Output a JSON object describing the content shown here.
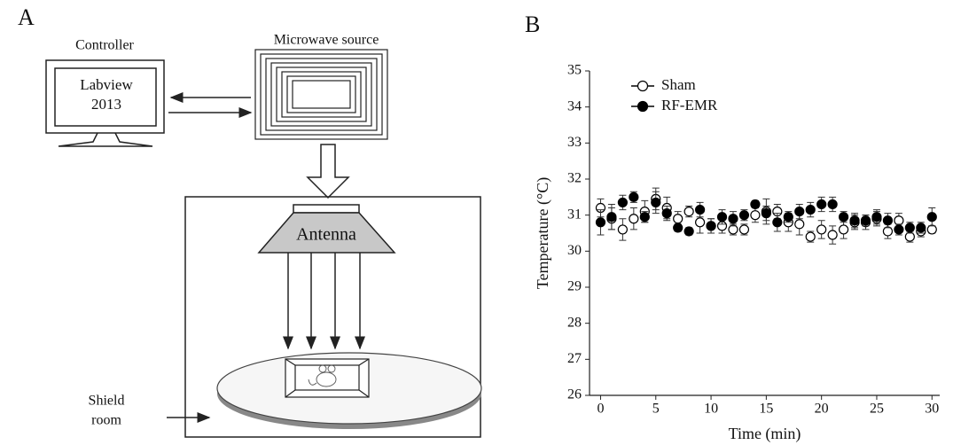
{
  "panel_a": {
    "label": "A",
    "controller": "Controller",
    "software": [
      "Labview",
      "2013"
    ],
    "source": "Microwave source",
    "antenna": "Antenna",
    "room": [
      "Shield",
      "room"
    ]
  },
  "chart_data": {
    "type": "scatter",
    "panel_label": "B",
    "x_label": "Time (min)",
    "y_label": "Temperature (°C)",
    "x": [
      0,
      1,
      2,
      3,
      4,
      5,
      6,
      7,
      8,
      9,
      10,
      11,
      12,
      13,
      14,
      15,
      16,
      17,
      18,
      19,
      20,
      21,
      22,
      23,
      24,
      25,
      26,
      27,
      28,
      29,
      30
    ],
    "series": [
      {
        "name": "Sham",
        "color": "#ffffff",
        "values": [
          31.2,
          30.9,
          30.6,
          30.9,
          31.1,
          31.45,
          31.2,
          30.9,
          31.1,
          30.8,
          30.7,
          30.7,
          30.6,
          30.6,
          31.0,
          31.1,
          31.1,
          30.8,
          30.75,
          30.4,
          30.6,
          30.45,
          30.6,
          30.8,
          30.8,
          30.9,
          30.55,
          30.85,
          30.4,
          30.55,
          30.6
        ],
        "errors": [
          0.25,
          0.3,
          0.3,
          0.3,
          0.3,
          0.3,
          0.3,
          0.2,
          0.15,
          0.3,
          0.2,
          0.2,
          0.15,
          0.15,
          0.2,
          0.35,
          0.2,
          0.25,
          0.3,
          0.15,
          0.25,
          0.25,
          0.25,
          0.2,
          0.2,
          0.2,
          0.2,
          0.2,
          0.15,
          0.15,
          0.1
        ]
      },
      {
        "name": "RF-EMR",
        "color": "#000000",
        "values": [
          30.8,
          30.95,
          31.35,
          31.5,
          30.95,
          31.35,
          31.05,
          30.65,
          30.55,
          31.15,
          30.7,
          30.95,
          30.9,
          31.0,
          31.3,
          31.05,
          30.8,
          30.95,
          31.1,
          31.15,
          31.3,
          31.3,
          30.95,
          30.85,
          30.85,
          30.95,
          30.85,
          30.6,
          30.65,
          30.65,
          30.95
        ],
        "errors": [
          0.35,
          0.35,
          0.2,
          0.15,
          0.15,
          0.3,
          0.2,
          0.1,
          0.1,
          0.2,
          0.2,
          0.2,
          0.2,
          0.15,
          0.1,
          0.2,
          0.25,
          0.15,
          0.2,
          0.2,
          0.2,
          0.2,
          0.15,
          0.2,
          0.15,
          0.2,
          0.2,
          0.15,
          0.15,
          0.15,
          0.25
        ]
      }
    ],
    "xlim": [
      -1,
      30.7
    ],
    "ylim": [
      26,
      35
    ],
    "xticks": [
      0,
      5,
      10,
      15,
      20,
      25,
      30
    ],
    "yticks": [
      26,
      27,
      28,
      29,
      30,
      31,
      32,
      33,
      34,
      35
    ],
    "legend": "upper left"
  }
}
